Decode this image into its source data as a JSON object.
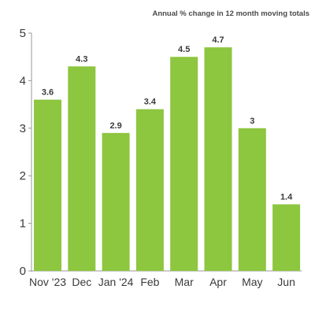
{
  "chart_data": {
    "type": "bar",
    "title": "Annual % change in 12 month moving totals",
    "categories": [
      "Nov '23",
      "Dec",
      "Jan '24",
      "Feb",
      "Mar",
      "Apr",
      "May",
      "Jun"
    ],
    "values": [
      3.6,
      4.3,
      2.9,
      3.4,
      4.5,
      4.7,
      3,
      1.4
    ],
    "data_labels": [
      "3.6",
      "4.3",
      "2.9",
      "3.4",
      "4.5",
      "4.7",
      "3",
      "1.4"
    ],
    "yticks": [
      "0",
      "1",
      "2",
      "3",
      "4",
      "5"
    ],
    "ylim": [
      0,
      5
    ],
    "grid": false,
    "legend": "none",
    "colors": {
      "bar": "#8dc63f",
      "axis": "#9a9a9a",
      "text": "#3a3a3a"
    }
  }
}
